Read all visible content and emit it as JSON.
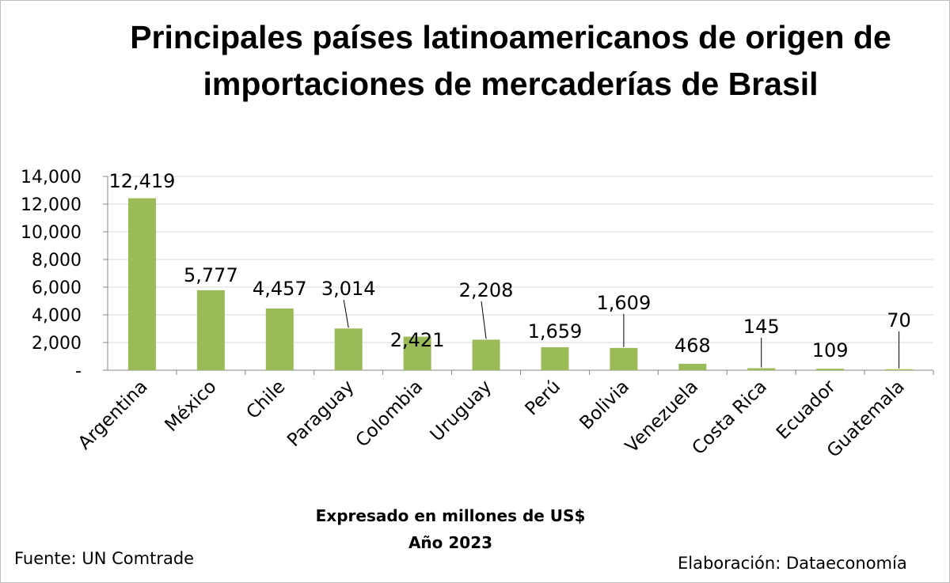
{
  "title": "Principales países latinoamericanos de origen de importaciones de mercaderías de Brasil",
  "subtitle_line1": "Expresado en millones de US$",
  "subtitle_line2": "Año 2023",
  "source": "Fuente: UN Comtrade",
  "credit": "Elaboración: Dataeconomía",
  "colors": {
    "bar": "#9bbb59",
    "axis": "#868686",
    "gridline": "#d9d9d9",
    "leader": "#000000"
  },
  "chart_data": {
    "type": "bar",
    "categories": [
      "Argentina",
      "México",
      "Chile",
      "Paraguay",
      "Colombia",
      "Uruguay",
      "Perú",
      "Bolivia",
      "Venezuela",
      "Costa Rica",
      "Ecuador",
      "Guatemala"
    ],
    "values": [
      12419,
      5777,
      4457,
      3014,
      2421,
      2208,
      1659,
      1609,
      468,
      145,
      109,
      70
    ],
    "data_labels": [
      "12,419",
      "5,777",
      "4,457",
      "3,014",
      "2,421",
      "2,208",
      "1,659",
      "1,609",
      "468",
      "145",
      "109",
      "70"
    ],
    "y_ticks": [
      0,
      2000,
      4000,
      6000,
      8000,
      10000,
      12000,
      14000
    ],
    "y_tick_labels": [
      "-",
      "2,000",
      "4,000",
      "6,000",
      "8,000",
      "10,000",
      "12,000",
      "14,000"
    ],
    "ylim": [
      0,
      14000
    ],
    "grid": true,
    "legend": "none"
  }
}
